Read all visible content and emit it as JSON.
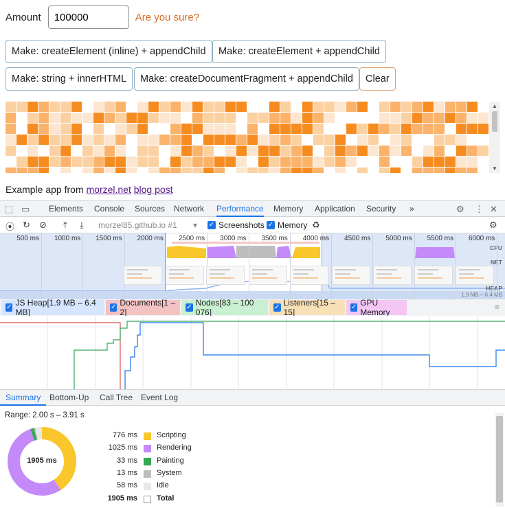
{
  "app": {
    "amount_label": "Amount",
    "amount_value": "100000",
    "warning": "Are you sure?",
    "buttons": {
      "create_inline": "Make: createElement (inline) + appendChild",
      "create": "Make: createElement + appendChild",
      "inner_html": "Make: string + innerHTML",
      "fragment": "Make: createDocumentFragment + appendChild",
      "clear": "Clear"
    },
    "credit_prefix": "Example app from ",
    "credit_link1": "morzel.net",
    "credit_link2": "blog post",
    "cell_colors": [
      "#f68b1f",
      "#fbb26a",
      "#fcd1a2",
      "#fde6cf",
      "#ffffff"
    ]
  },
  "devtools": {
    "tabs": [
      "Elements",
      "Console",
      "Sources",
      "Network",
      "Performance",
      "Memory",
      "Application",
      "Security"
    ],
    "active_tab": "Performance",
    "more_tabs": "»",
    "recording_select": "morzel85.github.io #1",
    "screenshots_label": "Screenshots",
    "memory_label": "Memory",
    "timeline_ticks": [
      "500 ms",
      "1000 ms",
      "1500 ms",
      "2000 ms",
      "2500 ms",
      "3000 ms",
      "3500 ms",
      "4000 ms",
      "4500 ms",
      "5000 ms",
      "5500 ms",
      "6000 ms"
    ],
    "lanes": {
      "cpu": "CPU",
      "net": "NET",
      "heap": "HEAP"
    },
    "heap_range": "1.9 MB – 6.4 MB",
    "counters": [
      {
        "label": "JS Heap[1.9 MB – 6.4 MB]",
        "color": "#1a73e8"
      },
      {
        "label": "Documents[1 – 2]",
        "color": "#d9534f"
      },
      {
        "label": "Nodes[83 – 100 076]",
        "color": "#34a853"
      },
      {
        "label": "Listeners[15 – 15]",
        "color": "#f5a623"
      },
      {
        "label": "GPU Memory",
        "color": "#c050d0"
      }
    ],
    "bottom_tabs": [
      "Summary",
      "Bottom-Up",
      "Call Tree",
      "Event Log"
    ],
    "active_bottom_tab": "Summary",
    "summary": {
      "range": "Range: 2.00 s – 3.91 s",
      "total_center": "1905 ms",
      "rows": [
        {
          "ms": "776 ms",
          "name": "Scripting",
          "color": "#f9c72b",
          "value": 776
        },
        {
          "ms": "1025 ms",
          "name": "Rendering",
          "color": "#c58af9",
          "value": 1025
        },
        {
          "ms": "33 ms",
          "name": "Painting",
          "color": "#34a853",
          "value": 33
        },
        {
          "ms": "13 ms",
          "name": "System",
          "color": "#bdbdbd",
          "value": 13
        },
        {
          "ms": "58 ms",
          "name": "Idle",
          "color": "#e8e8e8",
          "value": 58
        },
        {
          "ms": "1905 ms",
          "name": "Total",
          "color": "#ffffff",
          "value": 1905
        }
      ]
    }
  }
}
